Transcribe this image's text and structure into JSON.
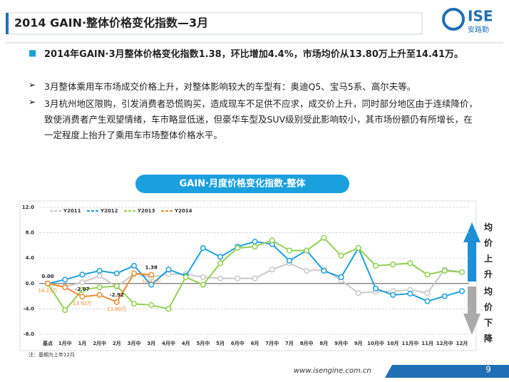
{
  "header": {
    "title": "2014 GAIN·整体价格变化指数—3月",
    "logo": "ISE",
    "logo_sub": "安路勤"
  },
  "bullets": [
    "2014年GAIN·3月整体价格变化指数1.38，环比增加4.4%，市场均价从13.80万上升至14.41万。",
    "3月整体乘用车市场成交价格上升，对整体影响较大的车型有：奥迪Q5、宝马5系、高尔夫等。",
    "3月杭州地区限购，引发消费者恐慌购买，造成现车不足供不应求，成交价上升，同时部分地区由于连续降价，致使消费者产生观望情绪，车市略显低迷，但豪华车型及SUV级别受此影响较小，其市场份额仍有所增长，在一定程度上抬升了乘用车市场整体价格水平。"
  ],
  "chart_data": {
    "type": "line",
    "title": "GAIN·月度价格变化指数-整体",
    "categories": [
      "基点",
      "1月中",
      "1月",
      "2月中",
      "2月",
      "3月中",
      "3月",
      "4月中",
      "4月",
      "5月中",
      "5月",
      "6月中",
      "6月",
      "7月中",
      "7月",
      "8月中",
      "8月",
      "9月中",
      "9月",
      "10月中",
      "10月",
      "11月中",
      "11月",
      "12月中",
      "12月"
    ],
    "ylim": [
      -8,
      12
    ],
    "yticks": [
      {
        "value": -8,
        "label": "-8.0"
      },
      {
        "value": -4,
        "label": "-4.0"
      },
      {
        "value": 0,
        "label": "0.0"
      },
      {
        "value": 4,
        "label": "4.0"
      },
      {
        "value": 8,
        "label": "8.0"
      },
      {
        "value": 12,
        "label": "12.0"
      }
    ],
    "grid": true,
    "series": [
      {
        "name": "Y2011",
        "color": "#c8c8c8",
        "values": [
          0,
          -0.5,
          0.2,
          1.2,
          -0.5,
          1.5,
          1.0,
          1.5,
          1.5,
          1.0,
          0.8,
          0.8,
          0.8,
          2.2,
          3.2,
          2.0,
          2.2,
          0.5,
          -1.5,
          -1.3,
          -1.2,
          -1.0,
          -1.5,
          2.2,
          1.8
        ]
      },
      {
        "name": "Y2012",
        "color": "#1ea0e0",
        "values": [
          0,
          0.6,
          1.4,
          2.0,
          1.6,
          2.8,
          -0.2,
          2.2,
          1.2,
          5.6,
          4.2,
          5.8,
          6.6,
          6.2,
          3.6,
          5.2,
          2.0,
          1.0,
          5.6,
          -0.8,
          -1.8,
          -1.6,
          -2.8,
          -2.0,
          -1.2
        ]
      },
      {
        "name": "Y2013",
        "color": "#92d050",
        "values": [
          0,
          -4.2,
          -1.0,
          -0.6,
          -0.4,
          -3.2,
          -3.4,
          -4.0,
          1.0,
          -0.2,
          3.2,
          5.6,
          5.8,
          6.8,
          5.2,
          5.2,
          7.2,
          4.4,
          5.6,
          2.8,
          3.0,
          3.2,
          1.4,
          2.0,
          1.8
        ]
      },
      {
        "name": "Y2014",
        "color": "#f08a30",
        "values": [
          0,
          -0.6,
          -2.07,
          -1.8,
          -2.92,
          1.6,
          1.38,
          null,
          null,
          null,
          null,
          null,
          null,
          null,
          null,
          null,
          null,
          null,
          null,
          null,
          null,
          null,
          null,
          null,
          null
        ],
        "value_labels": [
          "0.00",
          null,
          "-2.07",
          null,
          "-2.92",
          null,
          "1.38",
          null,
          null,
          null,
          null,
          null,
          null,
          null,
          null,
          null,
          null,
          null,
          null,
          null,
          null,
          null,
          null,
          null,
          null
        ],
        "price_labels": [
          "14.21万",
          null,
          "13.92万",
          null,
          "13.80万",
          null,
          "14.41万",
          null,
          null,
          null,
          null,
          null,
          null,
          null,
          null,
          null,
          null,
          null,
          null,
          null,
          null,
          null,
          null,
          null,
          null
        ]
      }
    ],
    "legend": "top-left"
  },
  "side_labels": {
    "up": "均价上升",
    "down": "均价下降"
  },
  "note": "注：基期为上年12月",
  "footer": {
    "url": "www.isengine.com.cn",
    "page": "9"
  }
}
